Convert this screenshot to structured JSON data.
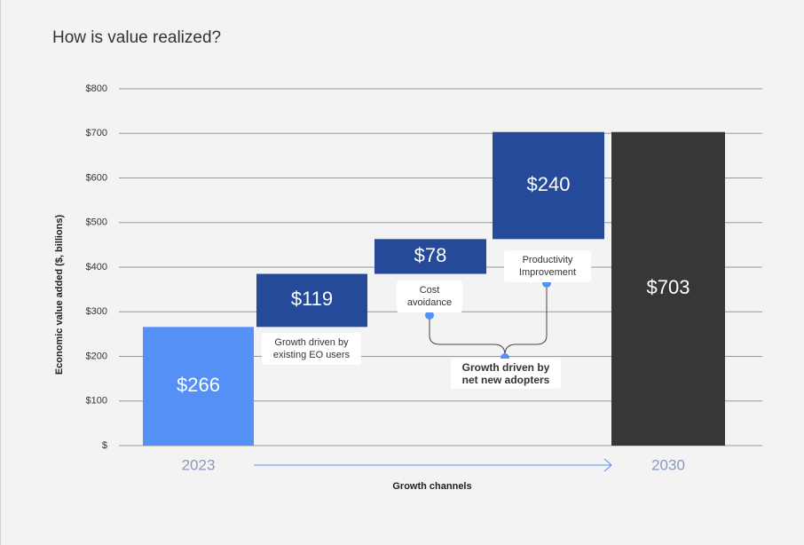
{
  "chart_data": {
    "type": "waterfall",
    "title": "How is value realized?",
    "y_label": "Economic value added  ($, billions)",
    "x_label": "Growth channels",
    "categories": [
      "2023",
      null,
      null,
      null,
      "2030"
    ],
    "measures": [
      "absolute",
      "relative",
      "relative",
      "relative",
      "total"
    ],
    "values": [
      266,
      119,
      78,
      240,
      703
    ],
    "value_labels": [
      "$266",
      "$119",
      "$78",
      "$240",
      "$703"
    ],
    "colors": [
      "#5590f6",
      "#244a99",
      "#244a99",
      "#244a99",
      "#383736"
    ],
    "notes": [
      null,
      "Growth driven by existing EO users",
      "Cost avoidance",
      "Productivity Improvement",
      null
    ],
    "group_label": "Growth driven by net new adopters",
    "ylim": [
      0,
      800
    ],
    "yticks": [
      {
        "value": 0,
        "label": "$"
      },
      {
        "value": 100,
        "label": "$100"
      },
      {
        "value": 200,
        "label": "$200"
      },
      {
        "value": 300,
        "label": "$300"
      },
      {
        "value": 400,
        "label": "$400"
      },
      {
        "value": 500,
        "label": "$500"
      },
      {
        "value": 600,
        "label": "$600"
      },
      {
        "value": 700,
        "label": "$700"
      },
      {
        "value": 800,
        "label": "$800"
      }
    ],
    "grid": true
  }
}
